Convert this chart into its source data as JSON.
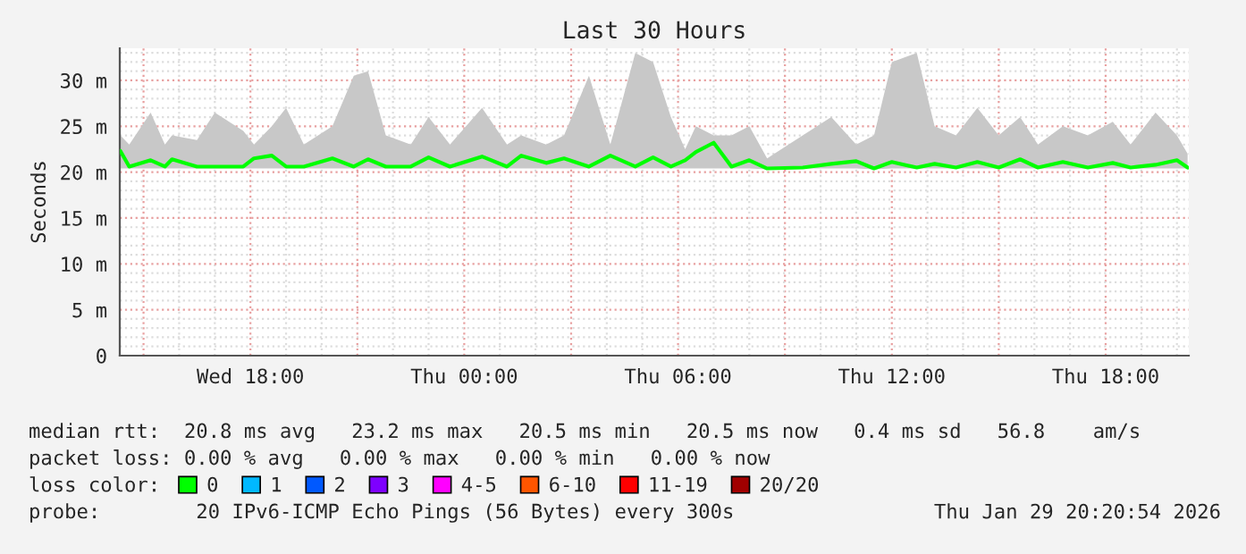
{
  "chart_data": {
    "type": "line",
    "title": "Last 30 Hours",
    "ylabel": "Seconds",
    "x": [
      "2026-01-28T14:21",
      "2026-01-28T14:36",
      "2026-01-28T15:12",
      "2026-01-28T15:36",
      "2026-01-28T15:48",
      "2026-01-28T16:30",
      "2026-01-28T17:00",
      "2026-01-28T17:48",
      "2026-01-28T18:06",
      "2026-01-28T18:36",
      "2026-01-28T19:00",
      "2026-01-28T19:30",
      "2026-01-28T20:18",
      "2026-01-28T20:54",
      "2026-01-28T21:18",
      "2026-01-28T21:48",
      "2026-01-28T22:30",
      "2026-01-28T23:00",
      "2026-01-28T23:36",
      "2026-01-29T00:30",
      "2026-01-29T01:12",
      "2026-01-29T01:36",
      "2026-01-29T02:18",
      "2026-01-29T02:48",
      "2026-01-29T03:30",
      "2026-01-29T04:06",
      "2026-01-29T04:48",
      "2026-01-29T05:18",
      "2026-01-29T05:48",
      "2026-01-29T06:12",
      "2026-01-29T06:30",
      "2026-01-29T07:00",
      "2026-01-29T07:30",
      "2026-01-29T08:00",
      "2026-01-29T08:30",
      "2026-01-29T09:30",
      "2026-01-29T10:18",
      "2026-01-29T11:00",
      "2026-01-29T11:30",
      "2026-01-29T12:00",
      "2026-01-29T12:42",
      "2026-01-29T13:12",
      "2026-01-29T13:48",
      "2026-01-29T14:24",
      "2026-01-29T15:00",
      "2026-01-29T15:36",
      "2026-01-29T16:06",
      "2026-01-29T16:48",
      "2026-01-29T17:30",
      "2026-01-29T18:12",
      "2026-01-29T18:42",
      "2026-01-29T19:24",
      "2026-01-29T20:00",
      "2026-01-29T20:18"
    ],
    "series": [
      {
        "name": "0",
        "color": "#00ff00",
        "values": [
          22.3,
          20.6,
          21.3,
          20.6,
          21.4,
          20.6,
          20.6,
          20.6,
          21.5,
          21.8,
          20.6,
          20.6,
          21.5,
          20.6,
          21.4,
          20.6,
          20.6,
          21.6,
          20.6,
          21.7,
          20.6,
          21.8,
          21.0,
          21.5,
          20.6,
          21.8,
          20.6,
          21.6,
          20.6,
          21.3,
          22.2,
          23.2,
          20.6,
          21.3,
          20.4,
          20.5,
          20.9,
          21.2,
          20.4,
          21.1,
          20.5,
          20.9,
          20.5,
          21.1,
          20.5,
          21.4,
          20.5,
          21.1,
          20.5,
          21.0,
          20.5,
          20.8,
          21.3,
          20.5
        ],
        "lower": [
          20.4,
          20.4,
          20.4,
          20.4,
          20.4,
          20.4,
          20.4,
          20.4,
          20.4,
          20.4,
          20.4,
          20.4,
          20.4,
          20.4,
          20.4,
          20.4,
          20.4,
          20.4,
          20.4,
          20.4,
          20.4,
          20.4,
          20.4,
          20.4,
          20.4,
          20.4,
          20.4,
          20.4,
          20.4,
          20.4,
          20.4,
          20.4,
          20.4,
          20.4,
          20.3,
          20.4,
          20.4,
          20.4,
          20.3,
          20.4,
          20.4,
          20.4,
          20.4,
          20.4,
          20.4,
          20.4,
          20.4,
          20.4,
          20.4,
          20.4,
          20.4,
          20.4,
          20.4,
          20.4
        ],
        "upper": [
          24,
          23,
          26.5,
          23,
          24,
          23.5,
          26.5,
          24.5,
          23,
          25,
          27,
          23,
          25,
          30.5,
          31,
          24,
          23,
          26,
          23,
          27,
          23,
          24,
          23,
          24,
          30.5,
          23,
          33,
          32,
          26,
          22.5,
          25,
          24,
          24,
          25,
          21.5,
          24,
          26,
          23,
          24,
          32,
          33,
          25,
          24,
          27,
          24,
          26,
          23,
          25,
          24,
          25.5,
          23,
          26.5,
          24,
          22
        ]
      },
      {
        "name": "1",
        "color": "#00b8ff",
        "values": [
          null,
          null,
          null,
          null,
          null,
          null,
          null,
          null,
          null,
          null,
          null,
          null,
          null,
          null,
          null,
          null,
          null,
          null,
          null,
          null,
          null,
          null,
          null,
          null,
          null,
          null,
          null,
          null,
          null,
          null,
          null,
          null,
          null,
          null,
          null,
          null,
          null,
          null,
          null,
          null,
          null,
          null,
          null,
          null,
          null,
          null,
          null,
          null,
          null,
          null,
          null,
          null,
          null,
          null
        ]
      },
      {
        "name": "2",
        "color": "#0059ff",
        "values": [
          null,
          null,
          null,
          null,
          null,
          null,
          null,
          null,
          null,
          null,
          null,
          null,
          null,
          null,
          null,
          null,
          null,
          null,
          null,
          null,
          null,
          null,
          null,
          null,
          null,
          null,
          null,
          null,
          null,
          null,
          null,
          null,
          null,
          null,
          null,
          null,
          null,
          null,
          null,
          null,
          null,
          null,
          null,
          null,
          null,
          null,
          null,
          null,
          null,
          null,
          null,
          null,
          null,
          null
        ]
      },
      {
        "name": "3",
        "color": "#7e00ff",
        "values": [
          null,
          null,
          null,
          null,
          null,
          null,
          null,
          null,
          null,
          null,
          null,
          null,
          null,
          null,
          null,
          null,
          null,
          null,
          null,
          null,
          null,
          null,
          null,
          null,
          null,
          null,
          null,
          null,
          null,
          null,
          null,
          null,
          null,
          null,
          null,
          null,
          null,
          null,
          null,
          null,
          null,
          null,
          null,
          null,
          null,
          null,
          null,
          null,
          null,
          null,
          null,
          null,
          null,
          null
        ]
      },
      {
        "name": "4-5",
        "color": "#ff00ff",
        "values": [
          null,
          null,
          null,
          null,
          null,
          null,
          null,
          null,
          null,
          null,
          null,
          null,
          null,
          null,
          null,
          null,
          null,
          null,
          null,
          null,
          null,
          null,
          null,
          null,
          null,
          null,
          null,
          null,
          null,
          null,
          null,
          null,
          null,
          null,
          null,
          null,
          null,
          null,
          null,
          null,
          null,
          null,
          null,
          null,
          null,
          null,
          null,
          null,
          null,
          null,
          null,
          null,
          null,
          null
        ]
      },
      {
        "name": "6-10",
        "color": "#ff5500",
        "values": [
          null,
          null,
          null,
          null,
          null,
          null,
          null,
          null,
          null,
          null,
          null,
          null,
          null,
          null,
          null,
          null,
          null,
          null,
          null,
          null,
          null,
          null,
          null,
          null,
          null,
          null,
          null,
          null,
          null,
          null,
          null,
          null,
          null,
          null,
          null,
          null,
          null,
          null,
          null,
          null,
          null,
          null,
          null,
          null,
          null,
          null,
          null,
          null,
          null,
          null,
          null,
          null,
          null,
          null
        ]
      },
      {
        "name": "11-19",
        "color": "#ff0000",
        "values": [
          null,
          null,
          null,
          null,
          null,
          null,
          null,
          null,
          null,
          null,
          null,
          null,
          null,
          null,
          null,
          null,
          null,
          null,
          null,
          null,
          null,
          null,
          null,
          null,
          null,
          null,
          null,
          null,
          null,
          null,
          null,
          null,
          null,
          null,
          null,
          null,
          null,
          null,
          null,
          null,
          null,
          null,
          null,
          null,
          null,
          null,
          null,
          null,
          null,
          null,
          null,
          null,
          null,
          null
        ]
      },
      {
        "name": "20/20",
        "color": "#a10000",
        "values": [
          null,
          null,
          null,
          null,
          null,
          null,
          null,
          null,
          null,
          null,
          null,
          null,
          null,
          null,
          null,
          null,
          null,
          null,
          null,
          null,
          null,
          null,
          null,
          null,
          null,
          null,
          null,
          null,
          null,
          null,
          null,
          null,
          null,
          null,
          null,
          null,
          null,
          null,
          null,
          null,
          null,
          null,
          null,
          null,
          null,
          null,
          null,
          null,
          null,
          null,
          null,
          null,
          null,
          null
        ]
      }
    ],
    "legend_title": "loss color:",
    "legend": "bottom",
    "xlim": [
      "2026-01-28T14:20",
      "2026-01-29T20:20"
    ],
    "xticks": [
      {
        "value": "2026-01-28T15:00",
        "label": null
      },
      {
        "value": "2026-01-28T18:00",
        "label": "Wed 18:00"
      },
      {
        "value": "2026-01-28T21:00",
        "label": null
      },
      {
        "value": "2026-01-29T00:00",
        "label": "Thu 00:00"
      },
      {
        "value": "2026-01-29T03:00",
        "label": null
      },
      {
        "value": "2026-01-29T06:00",
        "label": "Thu 06:00"
      },
      {
        "value": "2026-01-29T09:00",
        "label": null
      },
      {
        "value": "2026-01-29T12:00",
        "label": "Thu 12:00"
      },
      {
        "value": "2026-01-29T15:00",
        "label": null
      },
      {
        "value": "2026-01-29T18:00",
        "label": "Thu 18:00"
      }
    ],
    "ylim": [
      0,
      33.5
    ],
    "yticks": [
      0,
      {
        "value": 5,
        "label": "5 m"
      },
      {
        "value": 10,
        "label": "10 m"
      },
      {
        "value": 15,
        "label": "15 m"
      },
      {
        "value": 20,
        "label": "20 m"
      },
      {
        "value": 25,
        "label": "25 m"
      },
      {
        "value": 30,
        "label": "30 m"
      }
    ],
    "grid": true,
    "annotations": [
      "median rtt:  20.8 ms avg   23.2 ms max   20.5 ms min   20.5 ms now   0.4 ms sd   56.8    am/s",
      "packet loss: 0.00 % avg   0.00 % max   0.00 % min   0.00 % now",
      "probe:        20 IPv6-ICMP Echo Pings (56 Bytes) every 300s",
      "Thu Jan 29 20:20:54 2026"
    ]
  }
}
